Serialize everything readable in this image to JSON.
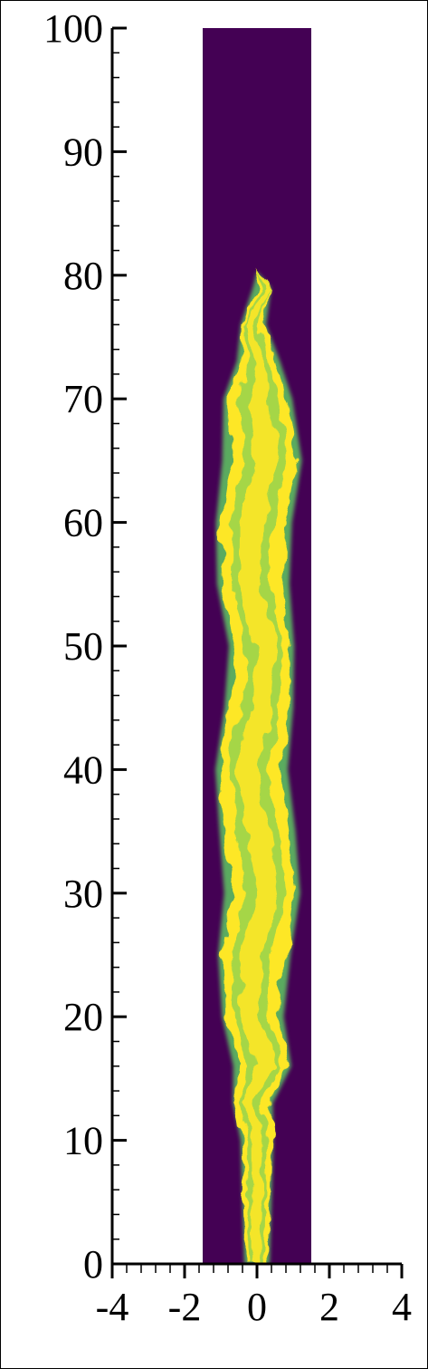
{
  "chart_data": {
    "type": "heatmap",
    "title": "",
    "xlabel": "",
    "ylabel": "",
    "xlim": [
      -4,
      4
    ],
    "ylim": [
      0,
      100
    ],
    "x_ticks": [
      {
        "value": -4,
        "label": "-4"
      },
      {
        "value": -2,
        "label": "-2"
      },
      {
        "value": 0,
        "label": "0"
      },
      {
        "value": 2,
        "label": "2"
      },
      {
        "value": 4,
        "label": "4"
      }
    ],
    "y_ticks": [
      {
        "value": 0,
        "label": "0"
      },
      {
        "value": 10,
        "label": "10"
      },
      {
        "value": 20,
        "label": "20"
      },
      {
        "value": 30,
        "label": "30"
      },
      {
        "value": 40,
        "label": "40"
      },
      {
        "value": 50,
        "label": "50"
      },
      {
        "value": 60,
        "label": "60"
      },
      {
        "value": 70,
        "label": "70"
      },
      {
        "value": 80,
        "label": "80"
      },
      {
        "value": 90,
        "label": "90"
      },
      {
        "value": 100,
        "label": "100"
      }
    ],
    "x_minor_step": 0.4,
    "y_minor_step": 2,
    "domain_extent": {
      "x": [
        -1.5,
        1.5
      ],
      "y": [
        0,
        100
      ]
    },
    "colormap": "viridis",
    "background_color": "#440154",
    "jet_color": "#fde725",
    "mid_color": "#5ec962",
    "jet_profile": [
      {
        "y": 0,
        "half_width": 0.35
      },
      {
        "y": 5,
        "half_width": 0.4
      },
      {
        "y": 10,
        "half_width": 0.45
      },
      {
        "y": 13,
        "half_width": 0.55
      },
      {
        "y": 16,
        "half_width": 0.8
      },
      {
        "y": 20,
        "half_width": 0.85
      },
      {
        "y": 25,
        "half_width": 1.0
      },
      {
        "y": 30,
        "half_width": 1.05
      },
      {
        "y": 35,
        "half_width": 1.05
      },
      {
        "y": 40,
        "half_width": 1.0
      },
      {
        "y": 45,
        "half_width": 0.95
      },
      {
        "y": 50,
        "half_width": 0.9
      },
      {
        "y": 55,
        "half_width": 1.0
      },
      {
        "y": 60,
        "half_width": 1.05
      },
      {
        "y": 65,
        "half_width": 1.1
      },
      {
        "y": 70,
        "half_width": 0.95
      },
      {
        "y": 73,
        "half_width": 0.6
      },
      {
        "y": 76,
        "half_width": 0.35
      },
      {
        "y": 79,
        "half_width": 0.25
      },
      {
        "y": 80.3,
        "half_width": 0.0
      }
    ]
  }
}
